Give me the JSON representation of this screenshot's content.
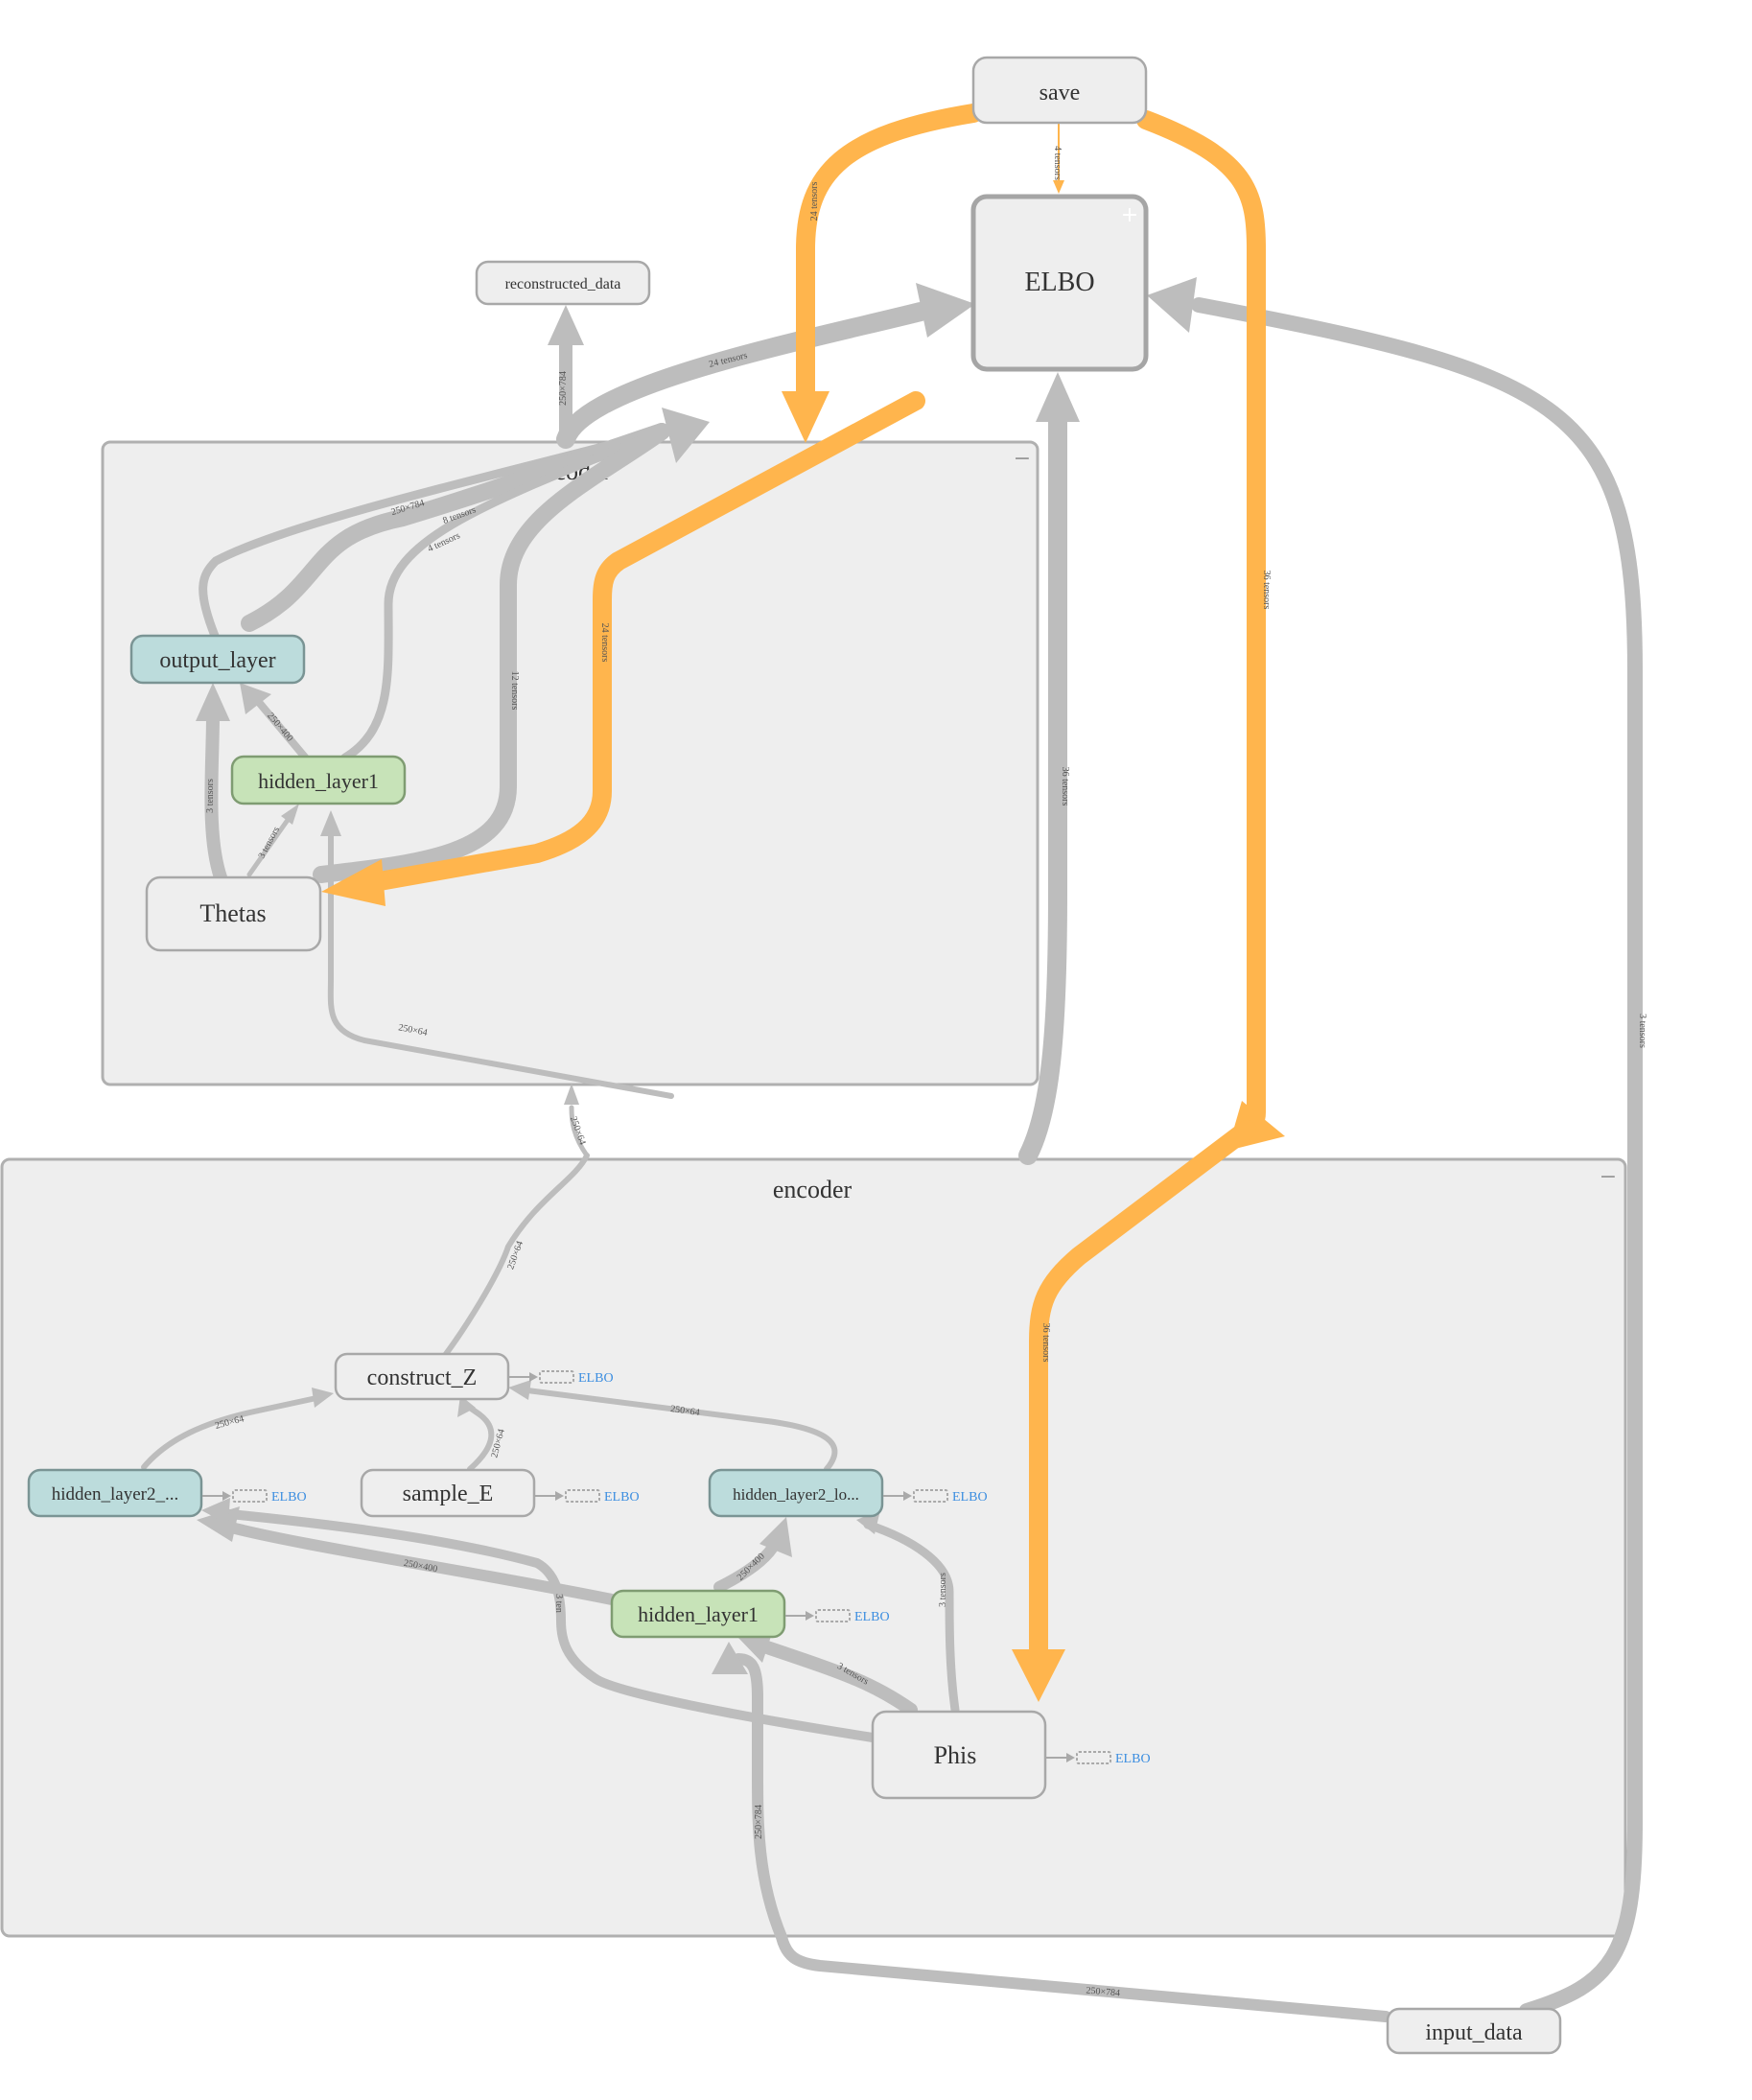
{
  "groups": {
    "decoder": {
      "title": "decoder",
      "control": "−"
    },
    "encoder": {
      "title": "encoder",
      "control": "−"
    }
  },
  "nodes": {
    "save": "save",
    "elbo": "ELBO",
    "elbo_expand": "+",
    "reconstructed_data": "reconstructed_data",
    "output_layer": "output_layer",
    "dec_hidden_layer1": "hidden_layer1",
    "thetas": "Thetas",
    "construct_z": "construct_Z",
    "hidden_layer2_left": "hidden_layer2_...",
    "sample_e": "sample_E",
    "hidden_layer2_right": "hidden_layer2_lo...",
    "enc_hidden_layer1": "hidden_layer1",
    "phis": "Phis",
    "input_data": "input_data"
  },
  "aux_label": "ELBO",
  "edge_labels": {
    "save_elbo": "4 tensors",
    "save_thetas": "24 tensors",
    "save_phis": "36 tensors",
    "save_thetas_lower": "24 tensors",
    "save_phis_lower": "36 tensors",
    "decoder_elbo": "24 tensors",
    "decoder_recon": "250×784",
    "out_250x784": "250×784",
    "out_8tensors": "8 tensors",
    "hid_4tensors": "4 tensors",
    "thetas_12tensors": "12 tensors",
    "hid_to_out": "250×400",
    "thetas_to_out": "3 tensors",
    "thetas_to_hid": "3 tensors",
    "dec_in_250x64": "250×64",
    "enc_to_dec_top": "250×64",
    "enc_to_dec_mid": "250×64",
    "encoder_elbo": "36 tensors",
    "input_elbo": "3 tensors",
    "hl2l_to_cz": "250×64",
    "hl2r_to_cz": "250×64",
    "se_to_cz": "250×64",
    "hid_to_hl2l": "250×400",
    "hid_to_hl2r": "250×400",
    "phis_to_hl2l": "3 ten",
    "phis_to_hid": "3 tensors",
    "phis_to_hl2r": "3 tensors",
    "input_to_hid": "250×784",
    "input_path": "250×784"
  }
}
